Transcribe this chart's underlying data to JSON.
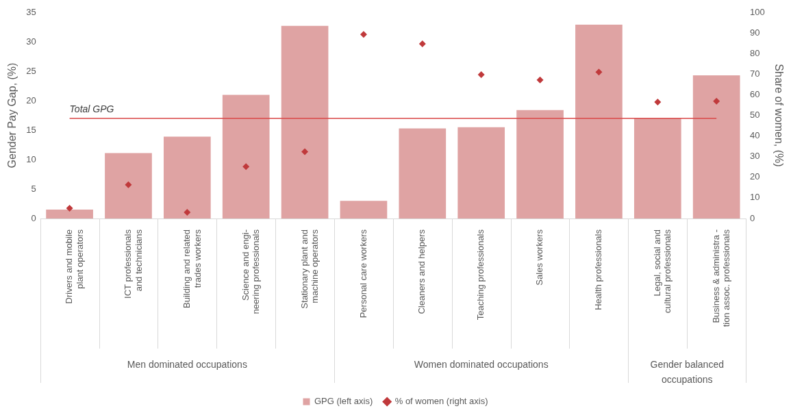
{
  "chart_data": {
    "type": "bar",
    "categories": [
      "Drivers and mobile plant operators",
      "ICT professionals and technicians",
      "Building and related trades workers",
      "Science and engi-neering professionals",
      "Stationary plant and machine operators",
      "Personal care workers",
      "Cleaners and helpers",
      "Teaching professionals",
      "Sales workers",
      "Health professionals",
      "Legal, social and cultural professionals",
      "Business & administra -tion assoc. professionals"
    ],
    "series": [
      {
        "name": "GPG (left axis)",
        "color": "#dfa3a3",
        "values": [
          1.5,
          11.1,
          13.9,
          21.0,
          32.7,
          3.0,
          15.3,
          15.5,
          18.4,
          32.9,
          17.1,
          24.3
        ]
      },
      {
        "name": "% of women (right axis)",
        "type": "scatter",
        "axis": "y2",
        "color": "#c0393b",
        "marker": "diamond",
        "x": [
          "Drivers and mobile plant operators",
          "ICT professionals and technicians",
          "Building and related trades workers",
          "Science and engi-neering professionals",
          "Stationary plant and machine operators",
          "Personal care workers",
          "Cleaners and helpers",
          "Teaching professionals",
          "Sales workers",
          "Health professionals",
          "Legal, social and cultural professionals",
          "Business & administra -tion assoc. professionals"
        ],
        "values": [
          5,
          16.4,
          3,
          25.2,
          32.4,
          89.3,
          84.7,
          69.8,
          67.2,
          71,
          56.5,
          56.9
        ]
      }
    ],
    "ylabel": "Gender Pay Gap, (%)",
    "y2label": "Share of women, (%)",
    "ylim": [
      0,
      35
    ],
    "yticks": [
      0,
      5,
      10,
      15,
      20,
      25,
      30,
      35
    ],
    "y2lim": [
      0,
      100
    ],
    "y2ticks": [
      0,
      10,
      20,
      30,
      40,
      50,
      60,
      70,
      80,
      90,
      100
    ],
    "ref_lines": [
      {
        "axis": "y",
        "value": 17.0,
        "label": "Total GPG",
        "color": "#d94a4a"
      }
    ],
    "annotations": [
      "Men dominated occupations",
      "Women dominated occupations",
      "Gender balanced occupations"
    ],
    "grid": false,
    "legend": "bottom"
  }
}
